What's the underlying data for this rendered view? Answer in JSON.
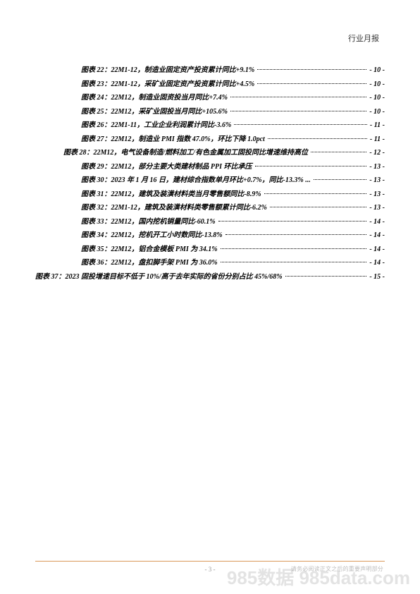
{
  "header": {
    "title": "行业月报"
  },
  "toc": {
    "entries": [
      {
        "indent": "a",
        "label": "图表 22：22M1-12，制造业固定资产投资累计同比+9.1%",
        "page": "- 10 -"
      },
      {
        "indent": "a",
        "label": "图表 23：22M1-12，采矿业固定资产投资累计同比+4.5%",
        "page": "- 10 -"
      },
      {
        "indent": "a",
        "label": "图表 24：22M12，制造业固资投当月同比+7.4%",
        "page": "- 10 -"
      },
      {
        "indent": "a",
        "label": "图表 25：22M12，采矿业固投当月同比+105.6%",
        "page": "- 10 -"
      },
      {
        "indent": "a",
        "label": "图表 26：22M1-11，工业企业利润累计同比-3.6%",
        "page": "- 11 -"
      },
      {
        "indent": "a",
        "label": "图表 27：22M12，制造业 PMI 指数 47.0%，环比下降 1.0pct",
        "page": "- 11 -"
      },
      {
        "indent": "b",
        "label": "图表 28：22M12，电气设备制造/燃料加工/有色金属加工固投同比增速维持高位",
        "page": "- 12 -"
      },
      {
        "indent": "a",
        "label": "图表 29：22M12，部分主要大类建材制品 PPI 环比承压",
        "page": "- 13 -"
      },
      {
        "indent": "a",
        "label": "图表 30：2023 年 1 月 16 日，建材综合指数单月环比+0.7%，同比-13.3% ...",
        "page": "- 13 -"
      },
      {
        "indent": "a",
        "label": "图表 31：22M12，建筑及装潢材料类当月零售额同比-8.9%",
        "page": "- 13 -"
      },
      {
        "indent": "a",
        "label": "图表 32：22M1-12，建筑及装潢材料类零售额累计同比-6.2%",
        "page": "- 13 -"
      },
      {
        "indent": "a",
        "label": "图表 33：22M12，国内挖机销量同比-60.1%",
        "page": "- 14 -"
      },
      {
        "indent": "a",
        "label": "图表 34：22M12，挖机开工小时数同比-13.8%",
        "page": "- 14 -"
      },
      {
        "indent": "a",
        "label": "图表 35：22M12，铝合金模板 PMI 为 34.1%",
        "page": "- 14 -"
      },
      {
        "indent": "a",
        "label": "图表 36：22M12，盘扣脚手架 PMI 为 36.0%",
        "page": "- 14 -"
      },
      {
        "indent": "c",
        "label": "图表 37：2023 固投增速目标不低于 10%/高于去年实际的省份分别占比 45%/68%",
        "page": "- 15 -"
      }
    ]
  },
  "footer": {
    "pagenum": "- 3 -",
    "note": "请务必阅读正文之后的重要声明部分"
  },
  "watermark": "985数据 985data.com",
  "colors": {
    "divider": "#d9985a",
    "text": "#000000",
    "footer_note": "#bdbdbd",
    "watermark": "#222222"
  }
}
